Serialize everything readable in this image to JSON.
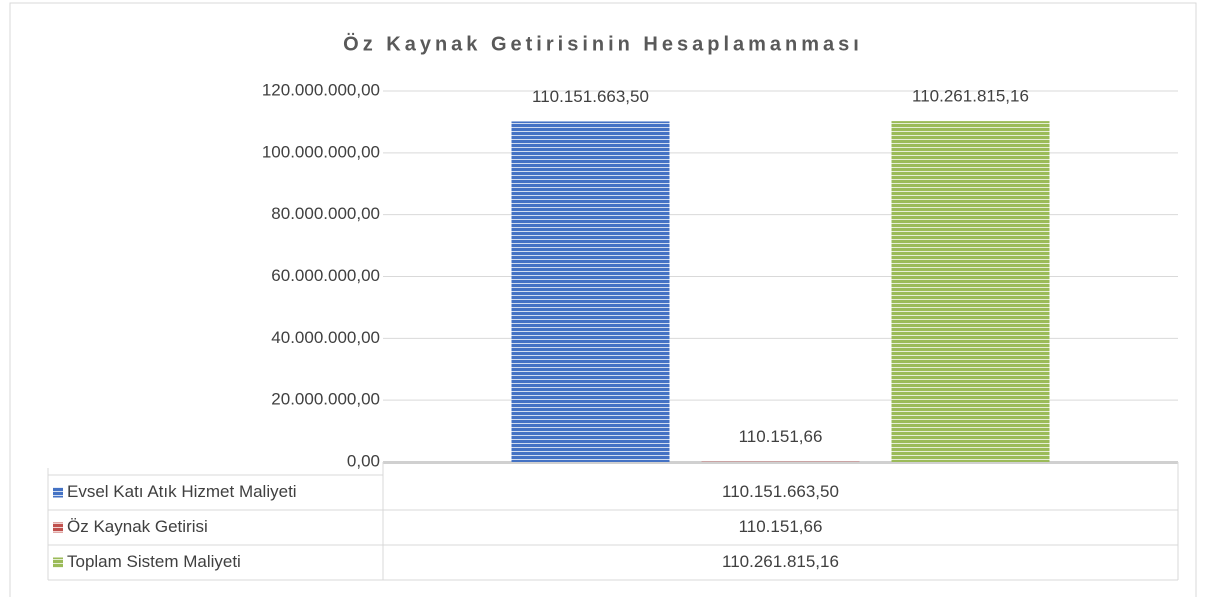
{
  "chart_data": {
    "type": "bar",
    "title": "Öz Kaynak Getirisinin Hesaplamanması",
    "categories": [
      null
    ],
    "series": [
      {
        "name": "Evsel Katı Atık Hizmet Maliyeti",
        "color": "#4472c4",
        "values": [
          110151663.5
        ],
        "value_labels": [
          "110.151.663,50"
        ]
      },
      {
        "name": "Öz Kaynak Getirisi",
        "color": "#c0504d",
        "values": [
          110151.66
        ],
        "value_labels": [
          "110.151,66"
        ]
      },
      {
        "name": "Toplam Sistem Maliyeti",
        "color": "#9bbb59",
        "values": [
          110261815.16
        ],
        "value_labels": [
          "110.261.815,16"
        ]
      }
    ],
    "ylim": [
      0,
      120000000
    ],
    "yticks": [
      {
        "value": 0,
        "label": "0,00"
      },
      {
        "value": 20000000,
        "label": "20.000.000,00"
      },
      {
        "value": 40000000,
        "label": "40.000.000,00"
      },
      {
        "value": 60000000,
        "label": "60.000.000,00"
      },
      {
        "value": 80000000,
        "label": "80.000.000,00"
      },
      {
        "value": 100000000,
        "label": "100.000.000,00"
      },
      {
        "value": 120000000,
        "label": "120.000.000,00"
      }
    ],
    "grid": true
  }
}
